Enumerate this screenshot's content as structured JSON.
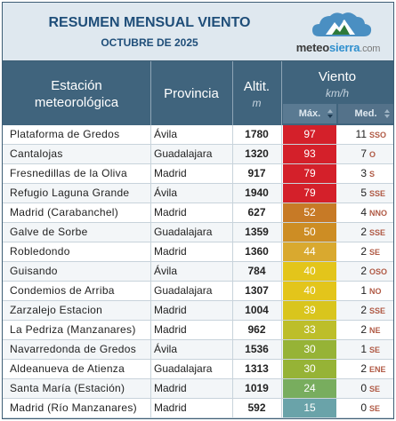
{
  "header": {
    "title": "RESUMEN MENSUAL VIENTO",
    "subtitle": "OCTUBRE DE 2025",
    "logo_text_a": "meteo",
    "logo_text_b": "sierra",
    "logo_text_c": ".com"
  },
  "columns": {
    "station_line1": "Estación",
    "station_line2": "meteorológica",
    "province": "Provincia",
    "altitude": "Altit.",
    "altitude_unit": "m",
    "wind": "Viento",
    "wind_unit": "km/h",
    "max": "Máx.",
    "med": "Med."
  },
  "colors": {
    "header_bg": "#dfe8ef",
    "column_header_bg": "#40647d",
    "title": "#1f4e79"
  },
  "rows": [
    {
      "station": "Plataforma de Gredos",
      "province": "Ávila",
      "altitude": "1780",
      "max": "97",
      "max_color": "#d4202a",
      "med": "11",
      "dir": "SSO"
    },
    {
      "station": "Cantalojas",
      "province": "Guadalajara",
      "altitude": "1320",
      "max": "93",
      "max_color": "#d4202a",
      "med": "7",
      "dir": "O"
    },
    {
      "station": "Fresnedillas de la Oliva",
      "province": "Madrid",
      "altitude": "917",
      "max": "79",
      "max_color": "#d4202a",
      "med": "3",
      "dir": "S"
    },
    {
      "station": "Refugio Laguna Grande",
      "province": "Ávila",
      "altitude": "1940",
      "max": "79",
      "max_color": "#d4202a",
      "med": "5",
      "dir": "SSE"
    },
    {
      "station": "Madrid (Carabanchel)",
      "province": "Madrid",
      "altitude": "627",
      "max": "52",
      "max_color": "#c77a26",
      "med": "4",
      "dir": "NNO"
    },
    {
      "station": "Galve de Sorbe",
      "province": "Guadalajara",
      "altitude": "1359",
      "max": "50",
      "max_color": "#cd8d24",
      "med": "2",
      "dir": "SSE"
    },
    {
      "station": "Robledondo",
      "province": "Madrid",
      "altitude": "1360",
      "max": "44",
      "max_color": "#d9a92f",
      "med": "2",
      "dir": "SE"
    },
    {
      "station": "Guisando",
      "province": "Ávila",
      "altitude": "784",
      "max": "40",
      "max_color": "#e3c51b",
      "med": "2",
      "dir": "OSO"
    },
    {
      "station": "Condemios de Arriba",
      "province": "Guadalajara",
      "altitude": "1307",
      "max": "40",
      "max_color": "#e3c51b",
      "med": "1",
      "dir": "NO"
    },
    {
      "station": "Zarzalejo Estacion",
      "province": "Madrid",
      "altitude": "1004",
      "max": "39",
      "max_color": "#d9c51d",
      "med": "2",
      "dir": "SSE"
    },
    {
      "station": "La Pedriza (Manzanares)",
      "province": "Madrid",
      "altitude": "962",
      "max": "33",
      "max_color": "#bdbe2a",
      "med": "2",
      "dir": "NE"
    },
    {
      "station": "Navarredonda de Gredos",
      "province": "Ávila",
      "altitude": "1536",
      "max": "30",
      "max_color": "#96b336",
      "med": "1",
      "dir": "SE"
    },
    {
      "station": "Aldeanueva de Atienza",
      "province": "Guadalajara",
      "altitude": "1313",
      "max": "30",
      "max_color": "#96b336",
      "med": "2",
      "dir": "ENE"
    },
    {
      "station": "Santa María (Estación)",
      "province": "Madrid",
      "altitude": "1019",
      "max": "24",
      "max_color": "#78ad5e",
      "med": "0",
      "dir": "SE"
    },
    {
      "station": "Madrid (Río Manzanares)",
      "province": "Madrid",
      "altitude": "592",
      "max": "15",
      "max_color": "#6aa3a9",
      "med": "0",
      "dir": "SE"
    }
  ]
}
